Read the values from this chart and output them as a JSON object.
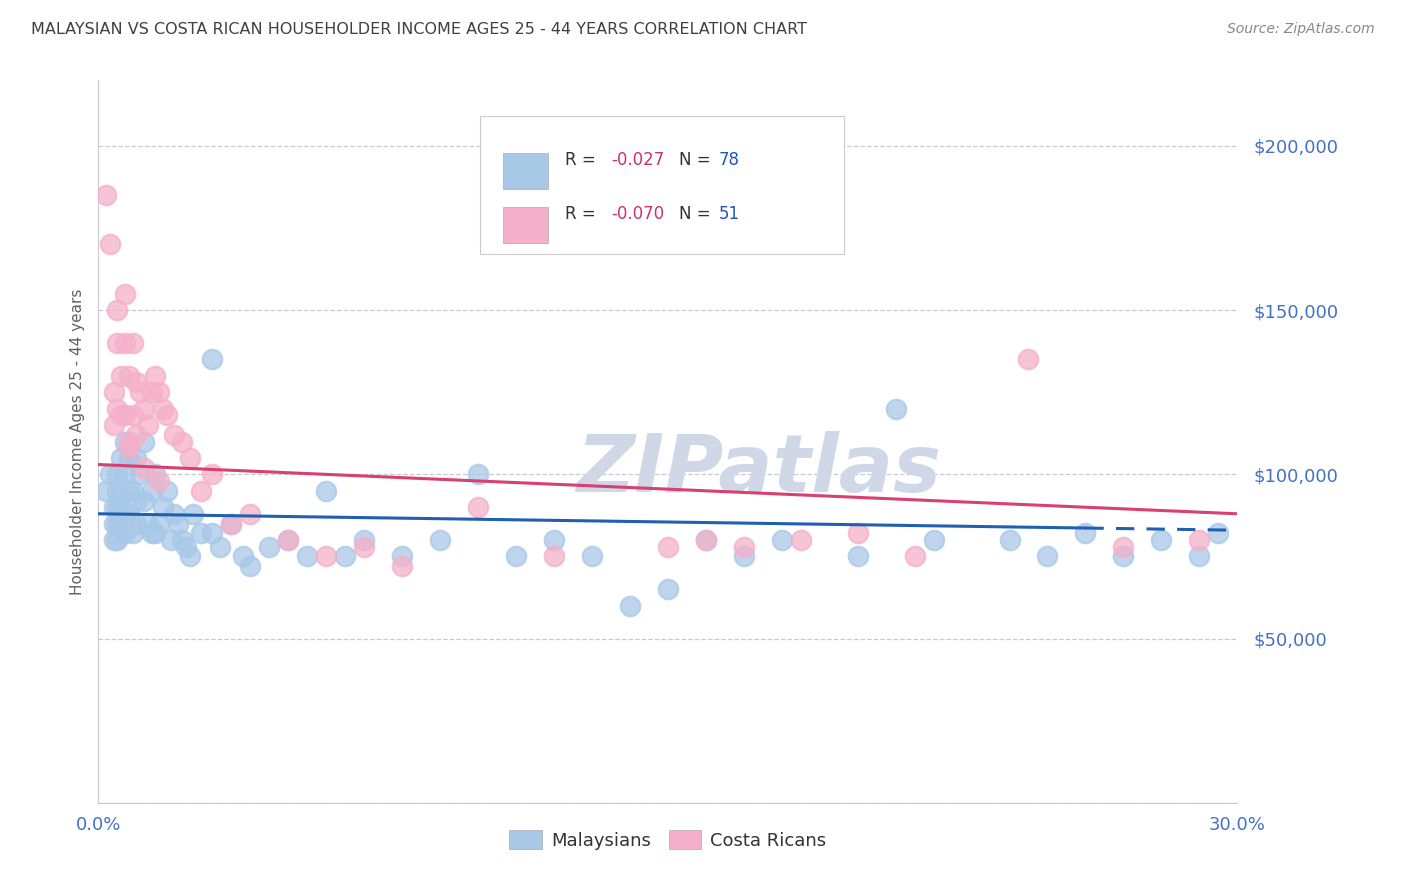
{
  "title": "MALAYSIAN VS COSTA RICAN HOUSEHOLDER INCOME AGES 25 - 44 YEARS CORRELATION CHART",
  "source": "Source: ZipAtlas.com",
  "ylabel": "Householder Income Ages 25 - 44 years",
  "xlim": [
    0.0,
    0.3
  ],
  "ylim": [
    0,
    220000
  ],
  "yticks": [
    0,
    50000,
    100000,
    150000,
    200000
  ],
  "ytick_labels": [
    "",
    "$50,000",
    "$100,000",
    "$150,000",
    "$200,000"
  ],
  "xticks": [
    0.0,
    0.05,
    0.1,
    0.15,
    0.2,
    0.25,
    0.3
  ],
  "xtick_labels": [
    "0.0%",
    "",
    "",
    "",
    "",
    "",
    "30.0%"
  ],
  "legend_label_blue": "Malaysians",
  "legend_label_pink": "Costa Ricans",
  "blue_color": "#a8c8e8",
  "pink_color": "#f4b0c8",
  "line_blue": "#2060b0",
  "line_pink": "#d84070",
  "watermark": "ZIPatlas",
  "watermark_color": "#d0d8e8",
  "background_color": "#ffffff",
  "grid_color": "#c8c8d8",
  "title_color": "#404040",
  "axis_label_color": "#606060",
  "ytick_label_color": "#4472c4",
  "xtick_label_color": "#4472c4",
  "blue_scatter_x": [
    0.002,
    0.003,
    0.004,
    0.004,
    0.004,
    0.005,
    0.005,
    0.005,
    0.005,
    0.005,
    0.006,
    0.006,
    0.006,
    0.006,
    0.007,
    0.007,
    0.007,
    0.007,
    0.008,
    0.008,
    0.008,
    0.009,
    0.009,
    0.01,
    0.01,
    0.01,
    0.011,
    0.012,
    0.012,
    0.013,
    0.014,
    0.014,
    0.015,
    0.015,
    0.016,
    0.017,
    0.018,
    0.019,
    0.02,
    0.021,
    0.022,
    0.023,
    0.024,
    0.025,
    0.027,
    0.03,
    0.032,
    0.035,
    0.038,
    0.04,
    0.045,
    0.05,
    0.055,
    0.06,
    0.065,
    0.07,
    0.08,
    0.09,
    0.1,
    0.11,
    0.12,
    0.13,
    0.14,
    0.15,
    0.16,
    0.17,
    0.18,
    0.2,
    0.21,
    0.22,
    0.24,
    0.25,
    0.26,
    0.27,
    0.28,
    0.29,
    0.295,
    0.03
  ],
  "blue_scatter_y": [
    95000,
    100000,
    85000,
    90000,
    80000,
    100000,
    95000,
    90000,
    85000,
    80000,
    105000,
    95000,
    90000,
    85000,
    110000,
    100000,
    88000,
    82000,
    105000,
    95000,
    88000,
    95000,
    82000,
    105000,
    92000,
    85000,
    100000,
    110000,
    92000,
    85000,
    95000,
    82000,
    100000,
    82000,
    85000,
    90000,
    95000,
    80000,
    88000,
    85000,
    80000,
    78000,
    75000,
    88000,
    82000,
    82000,
    78000,
    85000,
    75000,
    72000,
    78000,
    80000,
    75000,
    95000,
    75000,
    80000,
    75000,
    80000,
    100000,
    75000,
    80000,
    75000,
    60000,
    65000,
    80000,
    75000,
    80000,
    75000,
    120000,
    80000,
    80000,
    75000,
    82000,
    75000,
    80000,
    75000,
    82000,
    135000
  ],
  "pink_scatter_x": [
    0.002,
    0.003,
    0.004,
    0.004,
    0.005,
    0.005,
    0.005,
    0.006,
    0.006,
    0.007,
    0.007,
    0.007,
    0.008,
    0.008,
    0.009,
    0.009,
    0.01,
    0.01,
    0.011,
    0.012,
    0.013,
    0.014,
    0.015,
    0.016,
    0.017,
    0.018,
    0.02,
    0.022,
    0.024,
    0.027,
    0.03,
    0.035,
    0.04,
    0.05,
    0.06,
    0.07,
    0.08,
    0.1,
    0.12,
    0.15,
    0.16,
    0.17,
    0.185,
    0.2,
    0.215,
    0.245,
    0.27,
    0.29,
    0.008,
    0.012,
    0.016
  ],
  "pink_scatter_y": [
    185000,
    170000,
    115000,
    125000,
    150000,
    140000,
    120000,
    130000,
    118000,
    155000,
    140000,
    118000,
    130000,
    110000,
    140000,
    118000,
    128000,
    112000,
    125000,
    120000,
    115000,
    125000,
    130000,
    125000,
    120000,
    118000,
    112000,
    110000,
    105000,
    95000,
    100000,
    85000,
    88000,
    80000,
    75000,
    78000,
    72000,
    90000,
    75000,
    78000,
    80000,
    78000,
    80000,
    82000,
    75000,
    135000,
    78000,
    80000,
    108000,
    102000,
    98000
  ],
  "blue_line_x0": 0.0,
  "blue_line_x1": 0.3,
  "blue_line_y0": 88000,
  "blue_line_y1": 83000,
  "pink_line_x0": 0.0,
  "pink_line_x1": 0.3,
  "pink_line_y0": 103000,
  "pink_line_y1": 88000
}
